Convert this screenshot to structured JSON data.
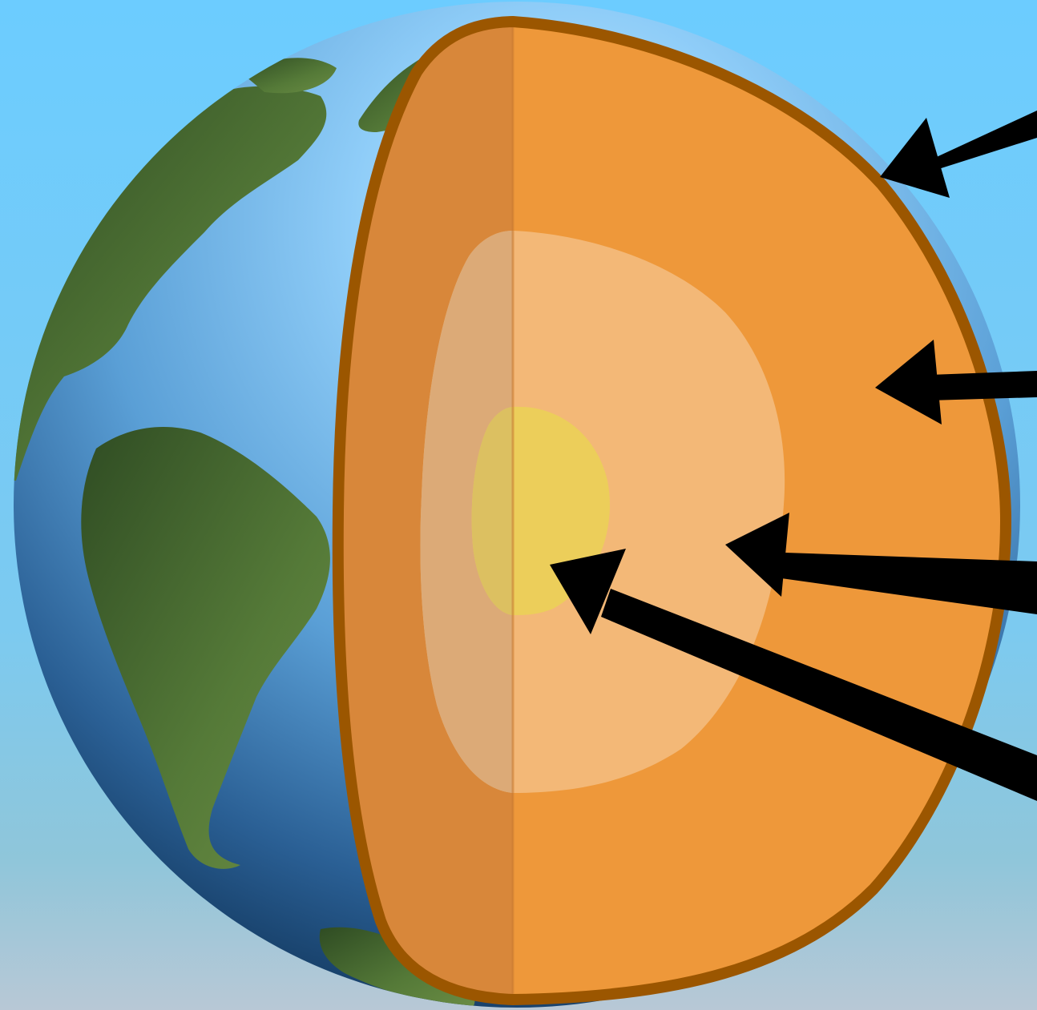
{
  "diagram": {
    "subject": "earth-interior-cutaway",
    "layers": [
      {
        "id": "crust",
        "color": "#9b5600"
      },
      {
        "id": "mantle",
        "color": "#ee983a"
      },
      {
        "id": "outer-core",
        "color": "#f3b877"
      },
      {
        "id": "inner-core",
        "color": "#ecce5a"
      }
    ],
    "arrow_count": 4,
    "colors": {
      "sky_top": "#6cccff",
      "sky_bottom": "#b8c8d6",
      "ocean_light": "#a6ddff",
      "ocean_dark": "#0d2f52",
      "land_dark": "#2f4c23",
      "land_light": "#6a8c44",
      "arrow": "#000000"
    }
  }
}
